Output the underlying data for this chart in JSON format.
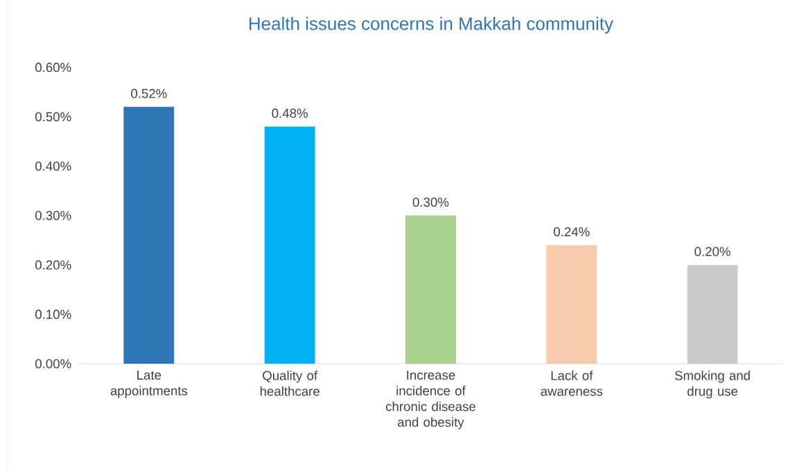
{
  "chart_data": {
    "type": "bar",
    "title": "Health issues concerns in Makkah community",
    "categories": [
      "Late appointments",
      "Quality of healthcare",
      "Increase incidence of chronic disease and obesity",
      "Lack of awareness",
      "Smoking and drug use"
    ],
    "values": [
      0.52,
      0.48,
      0.3,
      0.24,
      0.2
    ],
    "colors": [
      "#2e75b6",
      "#00b0f0",
      "#a9d18e",
      "#f8cbad",
      "#c9c9c9"
    ],
    "value_labels": [
      "0.52%",
      "0.48%",
      "0.30%",
      "0.24%",
      "0.20%"
    ],
    "ylim": [
      0,
      0.6
    ],
    "yticks": [
      {
        "value": 0,
        "label": "0.00%"
      },
      {
        "value": 0.1,
        "label": "0.10%"
      },
      {
        "value": 0.2,
        "label": "0.20%"
      },
      {
        "value": 0.3,
        "label": "0.30%"
      },
      {
        "value": 0.4,
        "label": "0.40%"
      },
      {
        "value": 0.5,
        "label": "0.50%"
      },
      {
        "value": 0.6,
        "label": "0.60%"
      }
    ],
    "grid": false
  }
}
